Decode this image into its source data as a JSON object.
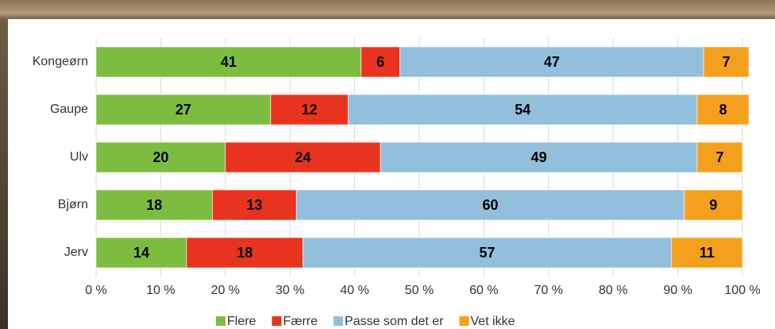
{
  "chart_data": {
    "type": "stacked-bar-horizontal",
    "categories": [
      "Kongeørn",
      "Gaupe",
      "Ulv",
      "Bjørn",
      "Jerv"
    ],
    "series": [
      {
        "name": "Flere",
        "color": "#7cbd3f",
        "values": [
          41,
          27,
          20,
          18,
          14
        ]
      },
      {
        "name": "Færre",
        "color": "#e8341f",
        "values": [
          6,
          12,
          24,
          13,
          18
        ]
      },
      {
        "name": "Passe som det er",
        "color": "#92bfdc",
        "values": [
          47,
          54,
          49,
          60,
          57
        ]
      },
      {
        "name": "Vet ikke",
        "color": "#f5a01c",
        "values": [
          7,
          8,
          7,
          9,
          11
        ]
      }
    ],
    "xlim": [
      0,
      100
    ],
    "xticks": [
      {
        "value": 0,
        "label": "0 %"
      },
      {
        "value": 10,
        "label": "10 %"
      },
      {
        "value": 20,
        "label": "20 %"
      },
      {
        "value": 30,
        "label": "30 %"
      },
      {
        "value": 40,
        "label": "40 %"
      },
      {
        "value": 50,
        "label": "50 %"
      },
      {
        "value": 60,
        "label": "60 %"
      },
      {
        "value": 70,
        "label": "70 %"
      },
      {
        "value": 80,
        "label": "80 %"
      },
      {
        "value": 90,
        "label": "90 %"
      },
      {
        "value": 100,
        "label": "100 %"
      }
    ],
    "grid": true,
    "legend": "bottom"
  }
}
